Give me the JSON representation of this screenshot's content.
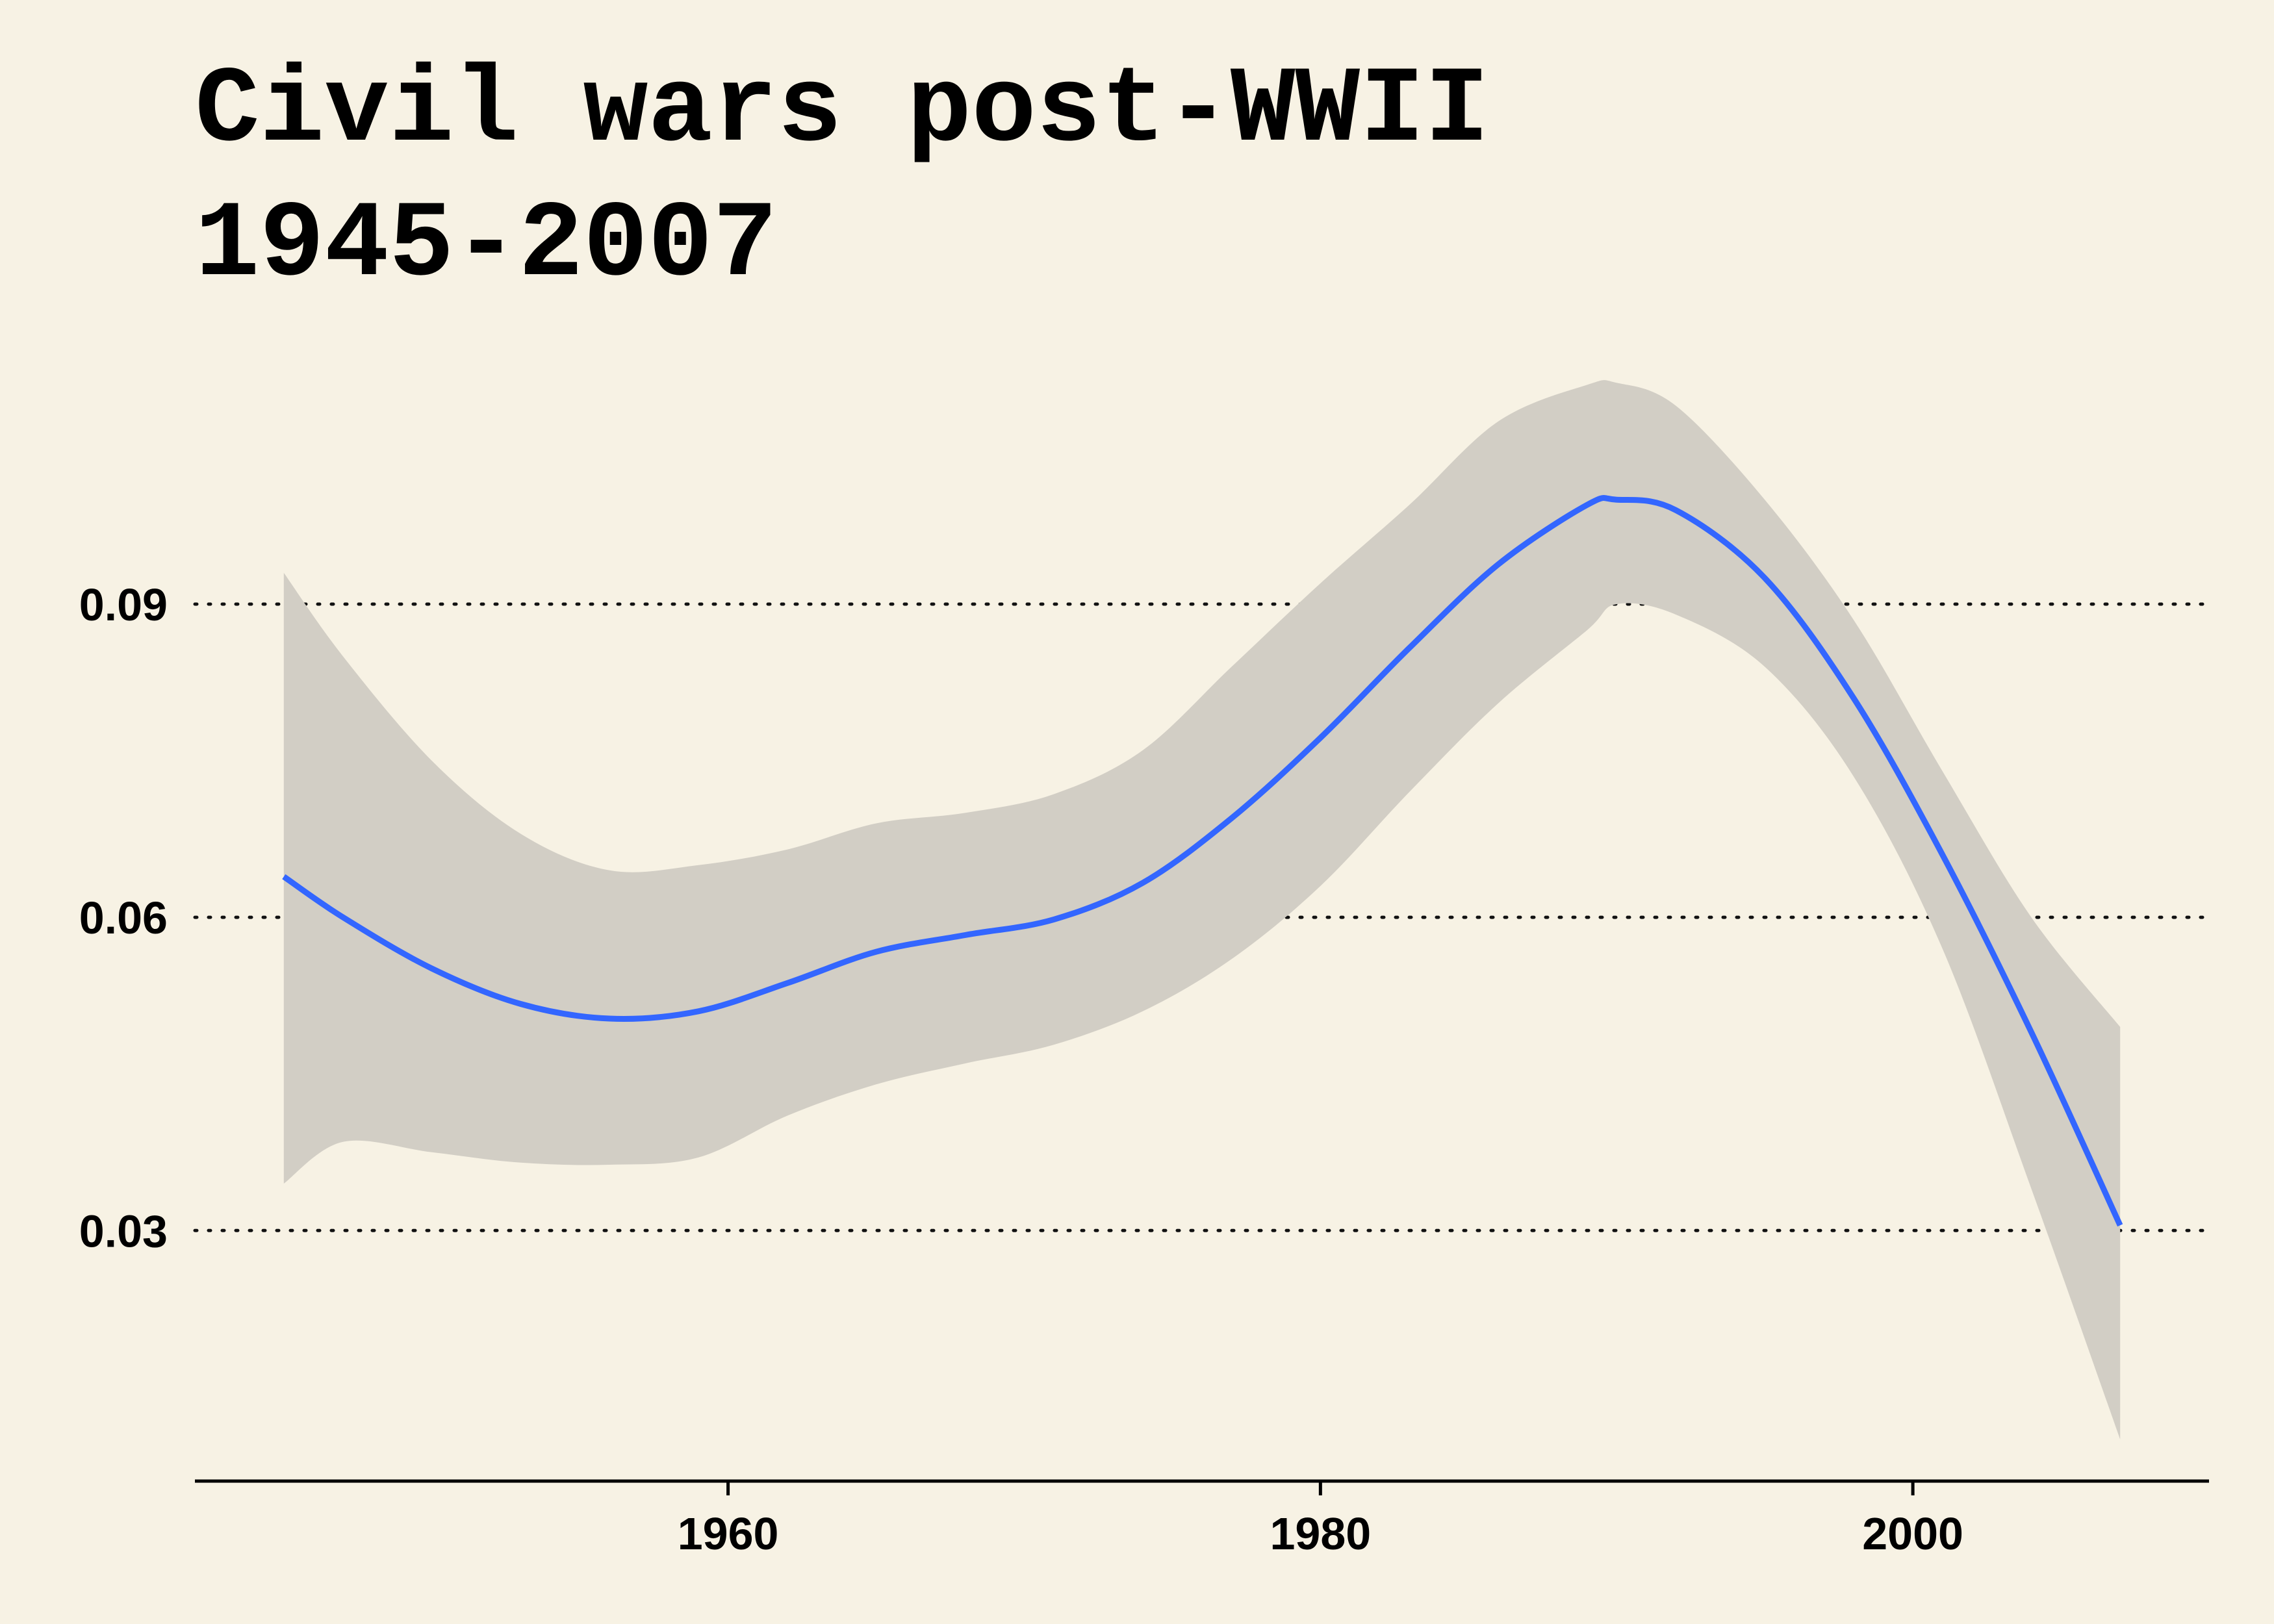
{
  "chart_data": {
    "type": "line",
    "title": "Civil wars post-WWII",
    "subtitle": "1945-2007",
    "xlabel": "",
    "ylabel": "",
    "xlim": [
      1942,
      2010
    ],
    "ylim": [
      0.006,
      0.118
    ],
    "x_ticks": [
      1960,
      1980,
      2000
    ],
    "x_tick_labels": [
      "1960",
      "1980",
      "2000"
    ],
    "y_ticks": [
      0.03,
      0.06,
      0.09
    ],
    "y_tick_labels": [
      "0.03",
      "0.06",
      "0.09"
    ],
    "grid": "horizontal dotted",
    "legend": "none",
    "series": [
      {
        "x": [
          1945,
          1947,
          1950,
          1953,
          1956,
          1959,
          1962,
          1965,
          1968,
          1971,
          1974,
          1977,
          1980,
          1983,
          1986,
          1989,
          1990,
          1992,
          1995,
          1998,
          2001,
          2004,
          2007
        ],
        "y": [
          0.0639,
          0.06,
          0.0551,
          0.0517,
          0.0503,
          0.051,
          0.0537,
          0.0567,
          0.0583,
          0.0598,
          0.0633,
          0.0695,
          0.0772,
          0.0858,
          0.0938,
          0.0995,
          0.1,
          0.099,
          0.0925,
          0.081,
          0.066,
          0.049,
          0.0305
        ],
        "ci_upper": [
          0.093,
          0.085,
          0.075,
          0.068,
          0.0645,
          0.065,
          0.0665,
          0.069,
          0.07,
          0.0718,
          0.076,
          0.084,
          0.092,
          0.0995,
          0.1075,
          0.111,
          0.1112,
          0.109,
          0.1,
          0.0885,
          0.074,
          0.06,
          0.0495
        ],
        "ci_lower": [
          0.0345,
          0.0385,
          0.0375,
          0.0365,
          0.0363,
          0.037,
          0.041,
          0.044,
          0.046,
          0.0478,
          0.051,
          0.056,
          0.063,
          0.072,
          0.0805,
          0.0875,
          0.09,
          0.089,
          0.084,
          0.0735,
          0.057,
          0.034,
          0.01
        ]
      }
    ]
  },
  "colors": {
    "background": "#f7f2e4",
    "line": "#3366ff",
    "ribbon": "#d2cec5",
    "grid": "#111111",
    "axis": "#000000",
    "text": "#000000"
  }
}
